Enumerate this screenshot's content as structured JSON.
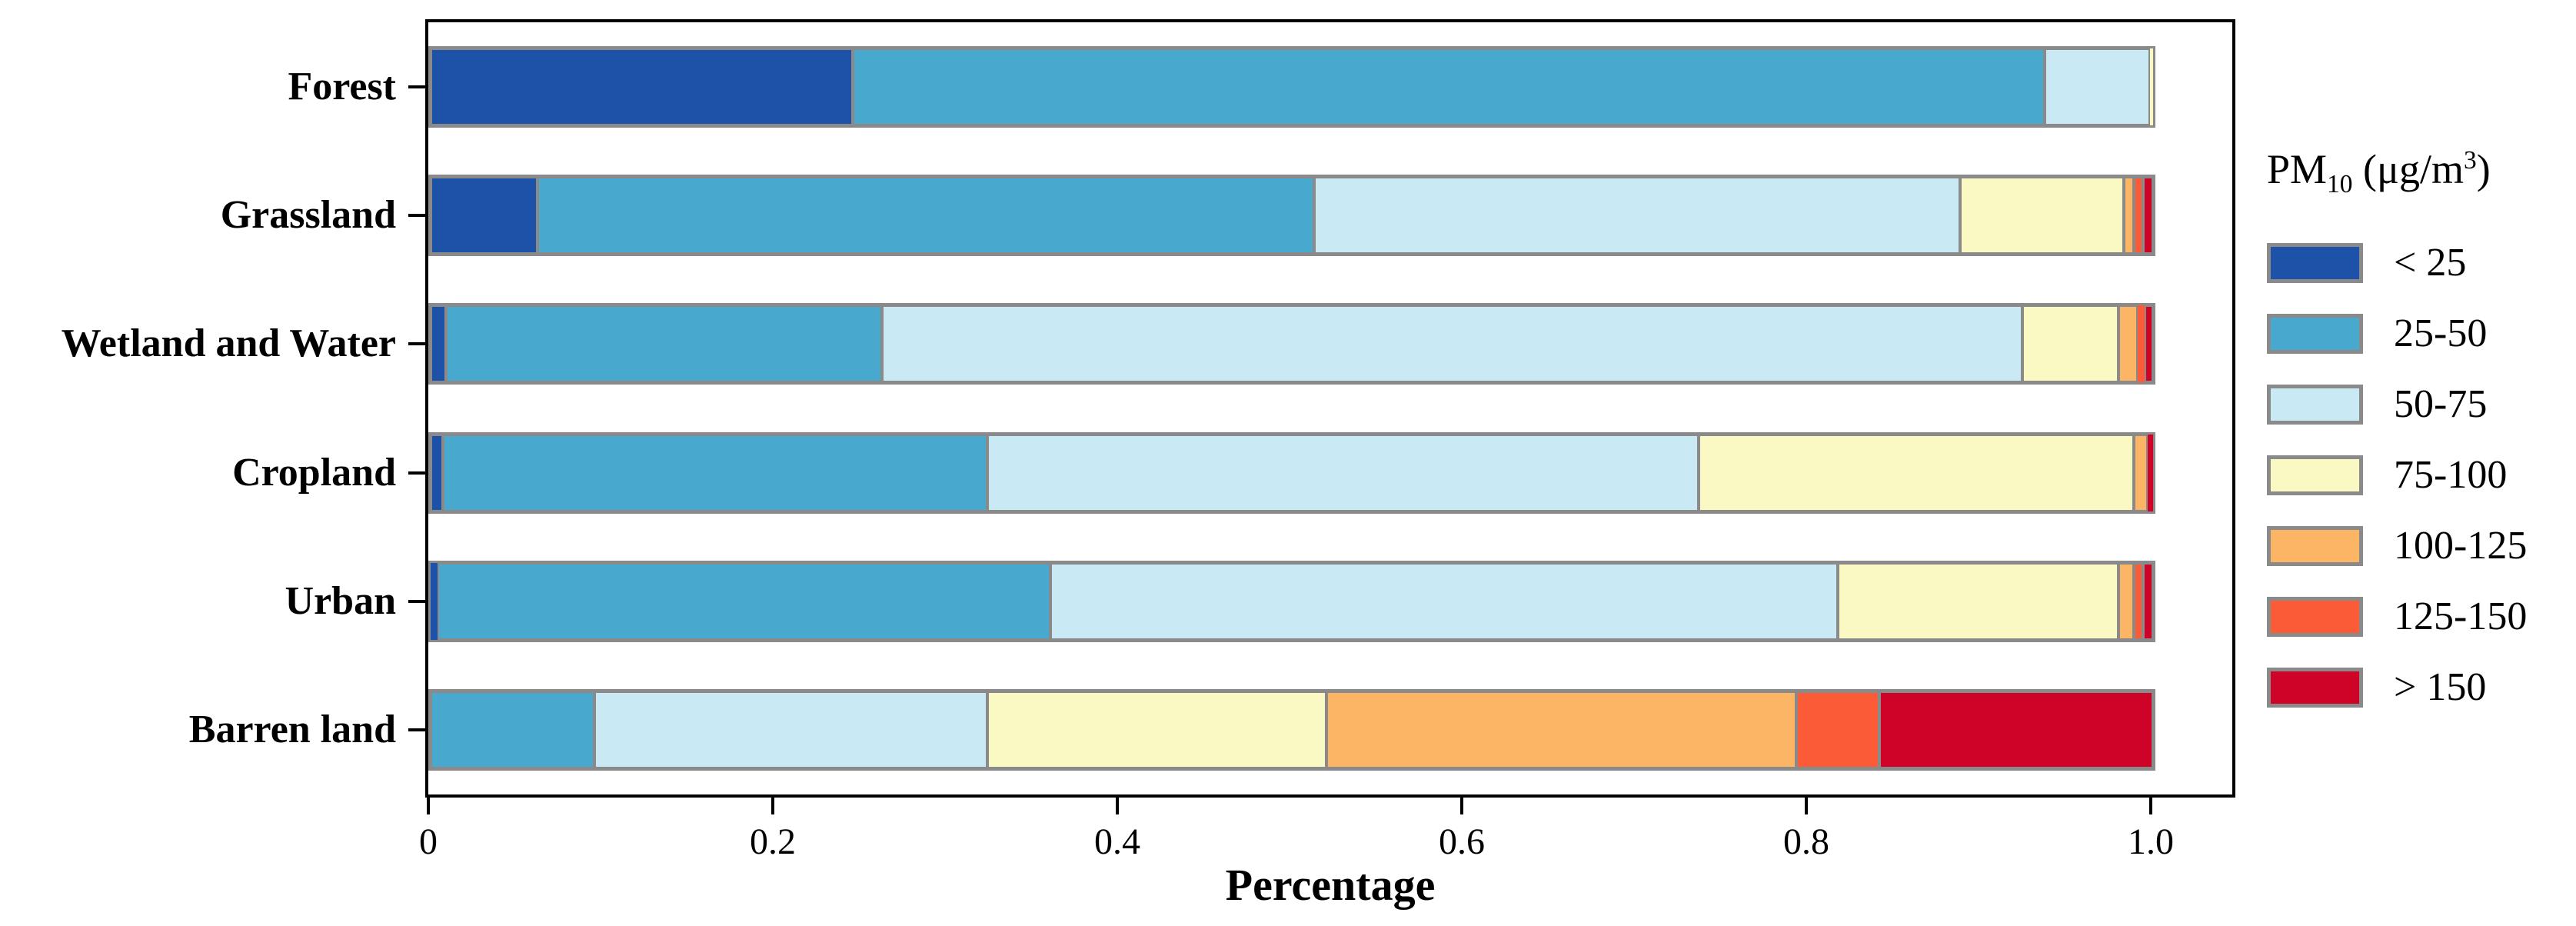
{
  "figure": {
    "background": "#ffffff",
    "frame_color": "#000000",
    "bar_border_color": "#8a8a8a"
  },
  "legend": {
    "title_pm": "PM",
    "title_sub": "10",
    "title_mid": " (μg/m",
    "title_sup": "3",
    "title_end": ")"
  },
  "chart_data": {
    "type": "bar",
    "orientation": "horizontal",
    "stacked": true,
    "title": "",
    "xlabel": "Percentage",
    "ylabel": "",
    "grid": false,
    "xlim": [
      0,
      1.05
    ],
    "x_ticks": [
      0,
      0.2,
      0.4,
      0.6,
      0.8,
      1.0
    ],
    "x_tick_labels": [
      "0",
      "0.2",
      "0.4",
      "0.6",
      "0.8",
      "1.0"
    ],
    "categories": [
      "Forest",
      "Grassland",
      "Wetland and Water",
      "Cropland",
      "Urban",
      "Barren land"
    ],
    "legend_title": "PM10 (μg/m3)",
    "legend_position": "right",
    "series": [
      {
        "name": "< 25",
        "color": "#1e52a8",
        "values": [
          0.245,
          0.062,
          0.009,
          0.007,
          0.004,
          0.0
        ]
      },
      {
        "name": "25-50",
        "color": "#49a8ce",
        "values": [
          0.692,
          0.451,
          0.253,
          0.316,
          0.356,
          0.095
        ]
      },
      {
        "name": "50-75",
        "color": "#c9e9f4",
        "values": [
          0.061,
          0.375,
          0.662,
          0.413,
          0.457,
          0.228
        ]
      },
      {
        "name": "75-100",
        "color": "#fbf9c3",
        "values": [
          0.002,
          0.095,
          0.056,
          0.253,
          0.163,
          0.197
        ]
      },
      {
        "name": "100-125",
        "color": "#fcb565",
        "values": [
          0.0,
          0.006,
          0.011,
          0.008,
          0.009,
          0.273
        ]
      },
      {
        "name": "125-150",
        "color": "#fb5b36",
        "values": [
          0.0,
          0.005,
          0.004,
          0.0,
          0.005,
          0.048
        ]
      },
      {
        "name": "> 150",
        "color": "#cf0228",
        "values": [
          0.0,
          0.006,
          0.005,
          0.003,
          0.006,
          0.159
        ]
      }
    ]
  }
}
